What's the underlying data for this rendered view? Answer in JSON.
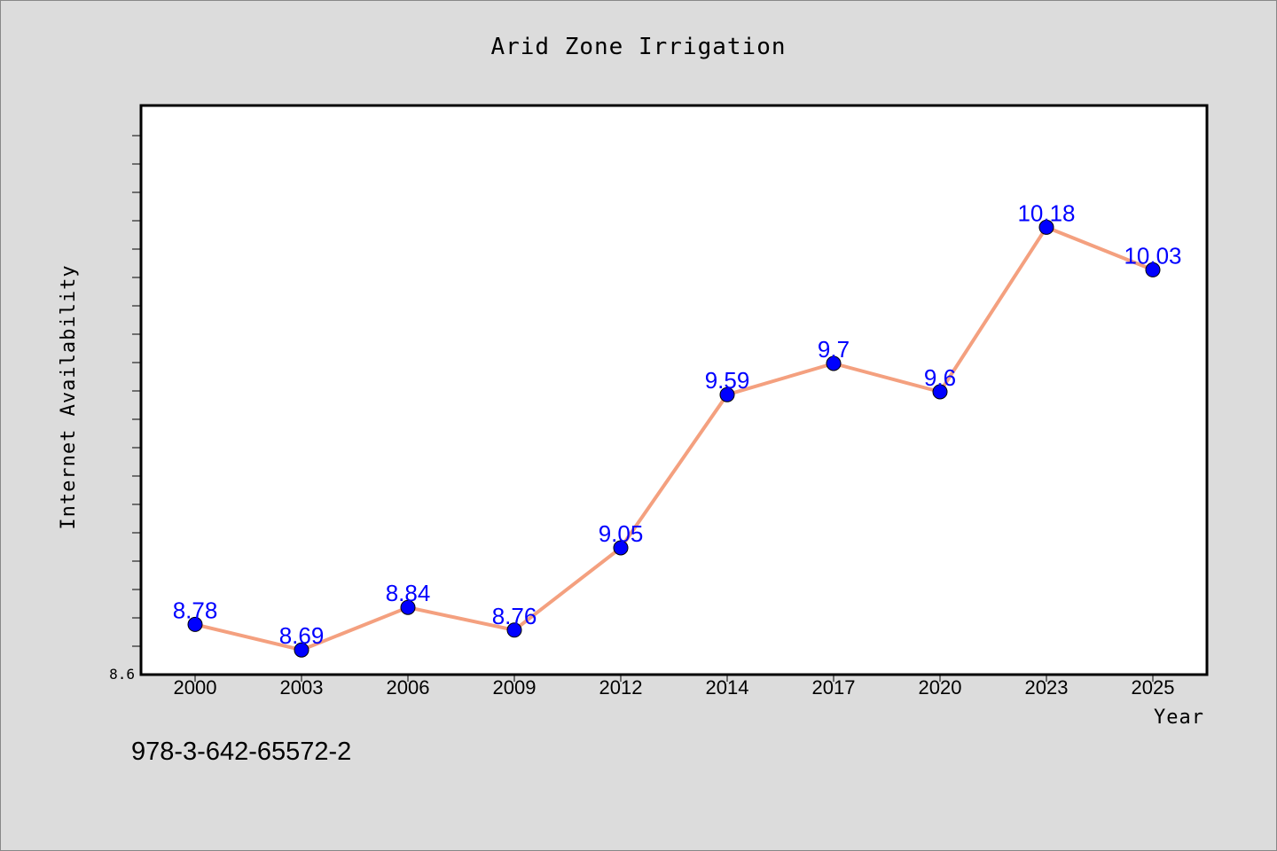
{
  "chart_data": {
    "type": "line",
    "title": "Arid Zone Irrigation",
    "xlabel": "Year",
    "ylabel": "Internet Availability",
    "categories": [
      "2000",
      "2003",
      "2006",
      "2009",
      "2012",
      "2014",
      "2017",
      "2020",
      "2023",
      "2025"
    ],
    "series": [
      {
        "values": [
          8.78,
          8.69,
          8.84,
          8.76,
          9.05,
          9.59,
          9.7,
          9.6,
          10.18,
          10.03
        ],
        "data_labels": [
          "8.78",
          "8.69",
          "8.84",
          "8.76",
          "9.05",
          "9.59",
          "9.7",
          "9.6",
          "10.18",
          "10.03"
        ],
        "line_color": "#f4a07f",
        "marker_color": "#0000ff"
      }
    ],
    "ylim": [
      8.6,
      10.6
    ],
    "y_tick_label": "8.6",
    "grid": false,
    "legend": "none"
  },
  "footer": {
    "isbn": "978-3-642-65572-2"
  },
  "colors": {
    "background": "#dcdcdc",
    "plot_background": "#ffffff",
    "data_label": "#0000ff"
  }
}
